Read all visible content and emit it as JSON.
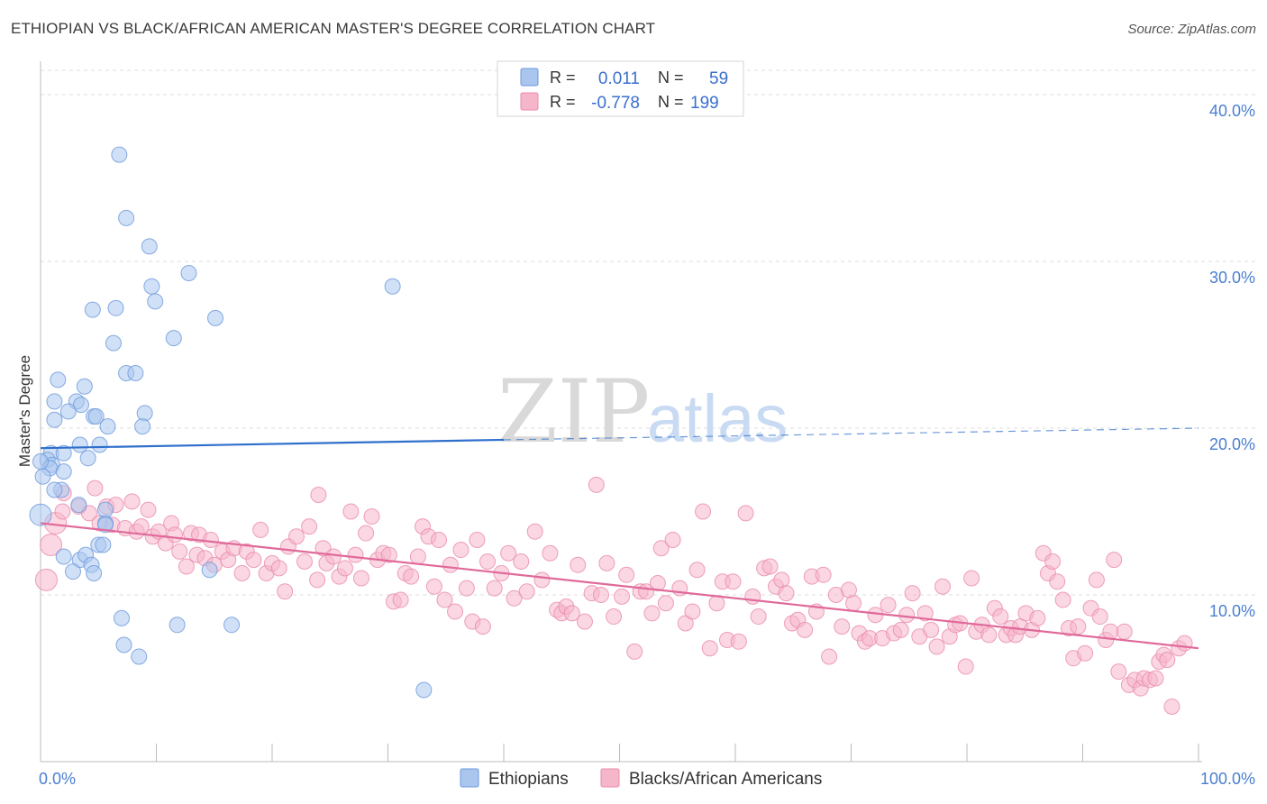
{
  "title": "ETHIOPIAN VS BLACK/AFRICAN AMERICAN MASTER'S DEGREE CORRELATION CHART",
  "source": "Source: ZipAtlas.com",
  "watermark": {
    "part1": "ZIP",
    "part2": "atlas"
  },
  "colors": {
    "blue_fill": "#aac6ef",
    "blue_stroke": "#6b98dc",
    "blue_line": "#2f6fcc",
    "pink_fill": "#f6b6ca",
    "pink_stroke": "#ea8aab",
    "pink_line": "#e0699a",
    "tick_text": "#4a7fd0",
    "grid": "#dcdcdc"
  },
  "legend": {
    "r_label": "R =",
    "n_label": "N =",
    "rows": [
      {
        "r": "0.011",
        "n": "59",
        "color": "blue"
      },
      {
        "r": "-0.778",
        "n": "199",
        "color": "pink"
      }
    ]
  },
  "chart_data": {
    "type": "scatter",
    "ylabel": "Master's Degree",
    "xlim": [
      0,
      100
    ],
    "ylim": [
      0,
      42
    ],
    "x_tick_labels": [
      "0.0%",
      "100.0%"
    ],
    "y_ticks": [
      10,
      20,
      30,
      40
    ],
    "y_tick_labels": [
      "10.0%",
      "20.0%",
      "30.0%",
      "40.0%"
    ],
    "grid": "horizontal dashed",
    "legend_position": "top-center",
    "series": [
      {
        "name": "Ethiopians",
        "color": "blue",
        "trend": {
          "x0": 0,
          "y0": 18.8,
          "x1": 40,
          "y1": 19.3,
          "dashed_to_x": 100,
          "dashed_to_y": 20.0
        },
        "points": [
          [
            6.8,
            36.4
          ],
          [
            7.4,
            32.6
          ],
          [
            9.4,
            30.9
          ],
          [
            12.8,
            29.3
          ],
          [
            9.6,
            28.5
          ],
          [
            30.4,
            28.5
          ],
          [
            9.9,
            27.6
          ],
          [
            4.5,
            27.1
          ],
          [
            6.5,
            27.2
          ],
          [
            15.1,
            26.6
          ],
          [
            11.5,
            25.4
          ],
          [
            6.3,
            25.1
          ],
          [
            1.5,
            22.9
          ],
          [
            3.8,
            22.5
          ],
          [
            7.4,
            23.3
          ],
          [
            8.2,
            23.3
          ],
          [
            1.2,
            21.6
          ],
          [
            3.1,
            21.6
          ],
          [
            3.5,
            21.4
          ],
          [
            2.4,
            21.0
          ],
          [
            9.0,
            20.9
          ],
          [
            4.6,
            20.7
          ],
          [
            4.8,
            20.7
          ],
          [
            1.2,
            20.5
          ],
          [
            5.8,
            20.1
          ],
          [
            8.8,
            20.1
          ],
          [
            3.4,
            19.0
          ],
          [
            5.1,
            19.0
          ],
          [
            0.9,
            18.5
          ],
          [
            2.0,
            18.5
          ],
          [
            4.1,
            18.2
          ],
          [
            0.6,
            18.1
          ],
          [
            1.0,
            17.8
          ],
          [
            0.8,
            17.6
          ],
          [
            2.0,
            17.4
          ],
          [
            0.2,
            17.1
          ],
          [
            1.8,
            16.3
          ],
          [
            1.2,
            16.3
          ],
          [
            3.3,
            15.4
          ],
          [
            5.6,
            15.1
          ],
          [
            0.0,
            14.8
          ],
          [
            5.6,
            14.3
          ],
          [
            5.6,
            14.2
          ],
          [
            5.0,
            13.0
          ],
          [
            5.4,
            13.0
          ],
          [
            2.0,
            12.3
          ],
          [
            3.4,
            12.1
          ],
          [
            3.9,
            12.4
          ],
          [
            4.4,
            11.8
          ],
          [
            2.8,
            11.4
          ],
          [
            4.6,
            11.3
          ],
          [
            14.6,
            11.5
          ],
          [
            7.0,
            8.6
          ],
          [
            11.8,
            8.2
          ],
          [
            16.5,
            8.2
          ],
          [
            7.2,
            7.0
          ],
          [
            8.5,
            6.3
          ],
          [
            33.1,
            4.3
          ],
          [
            0.0,
            18.0
          ]
        ]
      },
      {
        "name": "Blacks/African Americans",
        "color": "pink",
        "trend": {
          "x0": 0,
          "y0": 14.3,
          "x1": 100,
          "y1": 6.8
        },
        "points": [
          [
            0.5,
            10.9
          ],
          [
            0.9,
            13.0
          ],
          [
            1.3,
            14.3
          ],
          [
            1.9,
            15.0
          ],
          [
            2.0,
            16.1
          ],
          [
            3.3,
            15.3
          ],
          [
            4.2,
            14.9
          ],
          [
            4.7,
            16.4
          ],
          [
            5.1,
            14.3
          ],
          [
            5.7,
            15.3
          ],
          [
            6.2,
            14.2
          ],
          [
            6.5,
            15.4
          ],
          [
            7.3,
            14.0
          ],
          [
            7.9,
            15.6
          ],
          [
            8.3,
            13.8
          ],
          [
            8.7,
            14.1
          ],
          [
            9.3,
            15.1
          ],
          [
            9.7,
            13.5
          ],
          [
            10.2,
            13.8
          ],
          [
            10.8,
            13.1
          ],
          [
            11.3,
            14.3
          ],
          [
            11.6,
            13.6
          ],
          [
            12.0,
            12.6
          ],
          [
            12.6,
            11.7
          ],
          [
            13.0,
            13.7
          ],
          [
            13.5,
            12.4
          ],
          [
            13.7,
            13.6
          ],
          [
            14.2,
            12.2
          ],
          [
            14.7,
            13.3
          ],
          [
            15.0,
            11.8
          ],
          [
            15.7,
            12.6
          ],
          [
            16.2,
            12.1
          ],
          [
            16.7,
            12.8
          ],
          [
            17.4,
            11.3
          ],
          [
            17.8,
            12.6
          ],
          [
            18.4,
            12.1
          ],
          [
            19.0,
            13.9
          ],
          [
            19.5,
            11.3
          ],
          [
            20.0,
            11.9
          ],
          [
            20.6,
            11.6
          ],
          [
            21.1,
            10.2
          ],
          [
            21.4,
            12.9
          ],
          [
            22.1,
            13.5
          ],
          [
            22.8,
            12.0
          ],
          [
            23.2,
            14.1
          ],
          [
            23.9,
            10.9
          ],
          [
            24.0,
            16.0
          ],
          [
            24.4,
            12.8
          ],
          [
            24.7,
            11.9
          ],
          [
            25.3,
            12.3
          ],
          [
            25.8,
            11.1
          ],
          [
            26.3,
            11.6
          ],
          [
            26.8,
            15.0
          ],
          [
            27.2,
            12.4
          ],
          [
            27.7,
            11.0
          ],
          [
            28.1,
            13.7
          ],
          [
            28.6,
            14.7
          ],
          [
            29.1,
            12.1
          ],
          [
            29.6,
            12.5
          ],
          [
            30.1,
            12.4
          ],
          [
            30.5,
            9.6
          ],
          [
            31.1,
            9.7
          ],
          [
            31.5,
            11.3
          ],
          [
            32.0,
            11.1
          ],
          [
            32.6,
            12.3
          ],
          [
            33.0,
            14.1
          ],
          [
            33.5,
            13.5
          ],
          [
            34.0,
            10.5
          ],
          [
            34.4,
            13.3
          ],
          [
            34.9,
            9.7
          ],
          [
            35.4,
            11.8
          ],
          [
            35.8,
            9.0
          ],
          [
            36.3,
            12.7
          ],
          [
            36.8,
            10.4
          ],
          [
            37.3,
            8.4
          ],
          [
            37.7,
            13.3
          ],
          [
            38.2,
            8.1
          ],
          [
            38.6,
            12.0
          ],
          [
            39.2,
            10.4
          ],
          [
            39.8,
            11.3
          ],
          [
            40.4,
            12.5
          ],
          [
            40.9,
            9.8
          ],
          [
            41.5,
            12.0
          ],
          [
            42.0,
            10.2
          ],
          [
            42.7,
            13.8
          ],
          [
            43.3,
            10.9
          ],
          [
            44.0,
            12.5
          ],
          [
            44.6,
            9.1
          ],
          [
            45.0,
            8.9
          ],
          [
            45.4,
            9.3
          ],
          [
            45.9,
            8.9
          ],
          [
            46.4,
            11.8
          ],
          [
            47.0,
            8.4
          ],
          [
            47.6,
            10.1
          ],
          [
            48.0,
            16.6
          ],
          [
            48.4,
            10.0
          ],
          [
            48.9,
            11.9
          ],
          [
            49.5,
            8.7
          ],
          [
            50.2,
            9.9
          ],
          [
            50.6,
            11.2
          ],
          [
            51.3,
            6.6
          ],
          [
            51.8,
            10.2
          ],
          [
            52.3,
            10.2
          ],
          [
            52.8,
            8.9
          ],
          [
            53.3,
            10.7
          ],
          [
            53.6,
            12.8
          ],
          [
            54.0,
            9.5
          ],
          [
            54.6,
            13.3
          ],
          [
            55.2,
            10.4
          ],
          [
            55.7,
            8.3
          ],
          [
            56.3,
            9.0
          ],
          [
            56.7,
            11.5
          ],
          [
            57.2,
            15.0
          ],
          [
            57.8,
            6.8
          ],
          [
            58.4,
            9.5
          ],
          [
            58.9,
            10.8
          ],
          [
            59.3,
            7.3
          ],
          [
            59.8,
            10.8
          ],
          [
            60.3,
            7.2
          ],
          [
            60.9,
            14.9
          ],
          [
            61.5,
            9.9
          ],
          [
            62.0,
            8.7
          ],
          [
            62.5,
            11.6
          ],
          [
            63.0,
            11.7
          ],
          [
            63.5,
            10.5
          ],
          [
            64.0,
            10.9
          ],
          [
            64.4,
            10.1
          ],
          [
            64.9,
            8.3
          ],
          [
            65.4,
            8.5
          ],
          [
            66.0,
            7.9
          ],
          [
            66.6,
            11.1
          ],
          [
            67.0,
            9.0
          ],
          [
            67.6,
            11.2
          ],
          [
            68.1,
            6.3
          ],
          [
            68.7,
            10.0
          ],
          [
            69.2,
            8.1
          ],
          [
            69.8,
            10.3
          ],
          [
            70.2,
            9.5
          ],
          [
            70.7,
            7.7
          ],
          [
            71.2,
            7.2
          ],
          [
            71.6,
            7.4
          ],
          [
            72.1,
            8.8
          ],
          [
            72.7,
            7.4
          ],
          [
            73.2,
            9.4
          ],
          [
            73.7,
            7.7
          ],
          [
            74.3,
            7.9
          ],
          [
            74.8,
            8.8
          ],
          [
            75.3,
            10.1
          ],
          [
            75.9,
            7.5
          ],
          [
            76.4,
            8.9
          ],
          [
            76.9,
            7.9
          ],
          [
            77.4,
            6.9
          ],
          [
            77.9,
            10.5
          ],
          [
            78.5,
            7.5
          ],
          [
            79.0,
            8.2
          ],
          [
            79.4,
            8.3
          ],
          [
            79.9,
            5.7
          ],
          [
            80.4,
            11.0
          ],
          [
            80.8,
            7.8
          ],
          [
            81.3,
            8.2
          ],
          [
            81.9,
            7.6
          ],
          [
            82.4,
            9.2
          ],
          [
            82.9,
            8.7
          ],
          [
            83.4,
            7.6
          ],
          [
            83.8,
            8.0
          ],
          [
            84.2,
            7.6
          ],
          [
            84.6,
            8.1
          ],
          [
            85.1,
            8.9
          ],
          [
            85.6,
            7.9
          ],
          [
            86.1,
            8.6
          ],
          [
            86.6,
            12.5
          ],
          [
            87.0,
            11.3
          ],
          [
            87.4,
            12.0
          ],
          [
            87.8,
            10.8
          ],
          [
            88.3,
            9.7
          ],
          [
            88.8,
            8.0
          ],
          [
            89.2,
            6.2
          ],
          [
            89.6,
            8.1
          ],
          [
            90.2,
            6.5
          ],
          [
            90.7,
            9.2
          ],
          [
            91.2,
            10.9
          ],
          [
            91.5,
            8.7
          ],
          [
            92.0,
            7.3
          ],
          [
            92.4,
            7.8
          ],
          [
            92.7,
            12.1
          ],
          [
            93.1,
            5.4
          ],
          [
            93.6,
            7.8
          ],
          [
            94.0,
            4.6
          ],
          [
            94.5,
            4.9
          ],
          [
            95.0,
            4.4
          ],
          [
            95.3,
            5.0
          ],
          [
            95.8,
            4.9
          ],
          [
            96.3,
            5.0
          ],
          [
            96.6,
            6.0
          ],
          [
            97.0,
            6.4
          ],
          [
            97.3,
            6.1
          ],
          [
            97.7,
            3.3
          ],
          [
            98.3,
            6.8
          ],
          [
            98.8,
            7.1
          ]
        ]
      }
    ]
  }
}
